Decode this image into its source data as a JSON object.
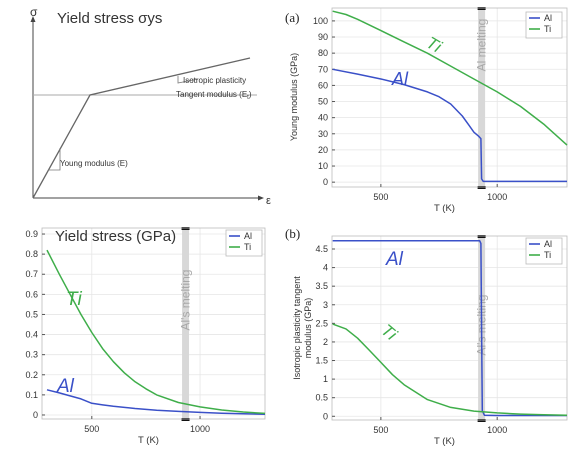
{
  "schematic": {
    "title": "Yield stress σys",
    "y_axis": "σ",
    "x_axis": "ε",
    "young_label": "Young modulus (E)",
    "iso_label_1": "Isotropic plasticity",
    "iso_label_2": "Tangent modulus (E",
    "iso_label_sub": "t",
    "iso_label_end": ")"
  },
  "colors": {
    "al": "#3a50c8",
    "ti": "#3fae4a",
    "melt": "#d8d8d8"
  },
  "chart_data": [
    {
      "type": "line",
      "panel_label": "(a)",
      "ylabel": "Young modulus (GPa)",
      "xlabel": "T (K)",
      "xlim": [
        290,
        1300
      ],
      "ylim": [
        -3,
        108
      ],
      "xticks": [
        500,
        1000
      ],
      "yticks": [
        0,
        10,
        20,
        30,
        40,
        50,
        60,
        70,
        80,
        90,
        100
      ],
      "grid": true,
      "legend": "top-right",
      "melt_x": 933,
      "melt_label": "Al melting",
      "series": [
        {
          "name": "Al",
          "inline_label": "Al",
          "x": [
            293,
            400,
            500,
            600,
            700,
            750,
            800,
            850,
            880,
            900,
            920,
            930,
            933,
            940,
            1000,
            1300
          ],
          "y": [
            70,
            67,
            64,
            60.5,
            56,
            53,
            48.5,
            41,
            35,
            31,
            28.5,
            27,
            2,
            0.5,
            0.5,
            0.5
          ]
        },
        {
          "name": "Ti",
          "inline_label": "Ti",
          "x": [
            293,
            350,
            400,
            500,
            600,
            700,
            800,
            900,
            1000,
            1100,
            1200,
            1300
          ],
          "y": [
            106,
            104,
            101,
            94,
            87,
            80,
            72,
            64,
            56,
            47,
            36,
            23
          ]
        }
      ]
    },
    {
      "type": "line",
      "panel_label": "",
      "title": "Yield stress (GPa)",
      "xlabel": "T (K)",
      "xlim": [
        270,
        1300
      ],
      "ylim": [
        -0.02,
        0.93
      ],
      "xticks": [
        500,
        1000
      ],
      "yticks": [
        0,
        0.1,
        0.2,
        0.3,
        0.4,
        0.5,
        0.6,
        0.7,
        0.8,
        0.9
      ],
      "grid": true,
      "legend": "top-right",
      "melt_x": 933,
      "melt_label": "Al's melting",
      "series": [
        {
          "name": "Al",
          "inline_label": "Al",
          "x": [
            293,
            350,
            400,
            450,
            500,
            550,
            600,
            700,
            800,
            900,
            1000,
            1100,
            1200,
            1300
          ],
          "y": [
            0.125,
            0.11,
            0.095,
            0.08,
            0.058,
            0.05,
            0.043,
            0.032,
            0.024,
            0.018,
            0.013,
            0.009,
            0.006,
            0.004
          ]
        },
        {
          "name": "Ti",
          "inline_label": "Ti",
          "x": [
            293,
            350,
            400,
            450,
            500,
            550,
            600,
            650,
            700,
            750,
            800,
            900,
            1000,
            1100,
            1200,
            1300
          ],
          "y": [
            0.82,
            0.7,
            0.6,
            0.5,
            0.41,
            0.33,
            0.265,
            0.21,
            0.165,
            0.13,
            0.1,
            0.062,
            0.04,
            0.025,
            0.015,
            0.008
          ]
        }
      ]
    },
    {
      "type": "line",
      "panel_label": "(b)",
      "ylabel": "Isotropic plasticity tangent modulus (GPa)",
      "xlabel": "T (K)",
      "xlim": [
        290,
        1300
      ],
      "ylim": [
        -0.1,
        4.85
      ],
      "xticks": [
        500,
        1000
      ],
      "yticks": [
        0,
        0.5,
        1,
        1.5,
        2,
        2.5,
        3,
        3.5,
        4,
        4.5
      ],
      "grid": true,
      "legend": "top-right",
      "melt_x": 933,
      "melt_label": "Al's melting",
      "series": [
        {
          "name": "Al",
          "inline_label": "Al",
          "x": [
            293,
            900,
            925,
            930,
            933,
            936,
            945,
            1000,
            1300
          ],
          "y": [
            4.72,
            4.72,
            4.72,
            4.65,
            2.3,
            0.15,
            0.03,
            0.02,
            0.02
          ]
        },
        {
          "name": "Ti",
          "inline_label": "Ti",
          "x": [
            293,
            350,
            400,
            450,
            500,
            550,
            600,
            700,
            800,
            900,
            1000,
            1100,
            1200,
            1300
          ],
          "y": [
            2.48,
            2.35,
            2.1,
            1.78,
            1.45,
            1.12,
            0.85,
            0.45,
            0.24,
            0.14,
            0.09,
            0.06,
            0.04,
            0.03
          ]
        }
      ]
    }
  ]
}
